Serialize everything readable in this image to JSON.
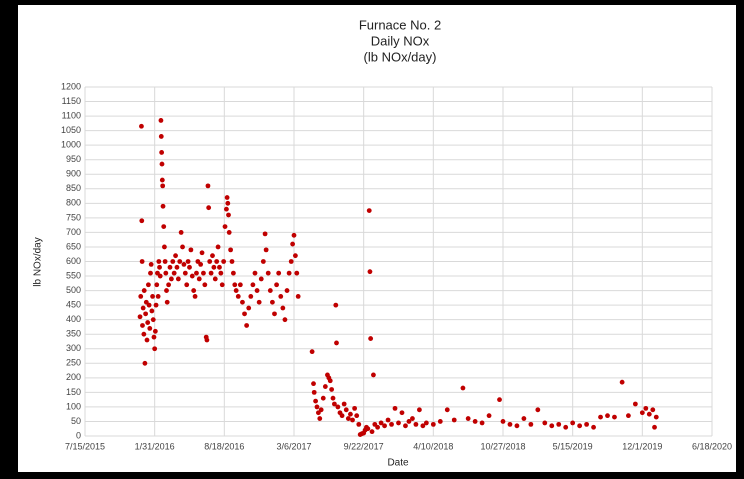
{
  "chart_data": {
    "type": "scatter",
    "title": [
      "Furnace No. 2",
      "Daily NOx",
      "(lb NOx/day)"
    ],
    "x_label": "Date",
    "y_label": "lb NOx/day",
    "xlim": [
      42200,
      44000
    ],
    "xticks": [
      {
        "value": 42200,
        "label": "7/15/2015"
      },
      {
        "value": 42400,
        "label": "1/31/2016"
      },
      {
        "value": 42600,
        "label": "8/18/2016"
      },
      {
        "value": 42800,
        "label": "3/6/2017"
      },
      {
        "value": 43000,
        "label": "9/22/2017"
      },
      {
        "value": 43200,
        "label": "4/10/2018"
      },
      {
        "value": 43400,
        "label": "10/27/2018"
      },
      {
        "value": 43600,
        "label": "5/15/2019"
      },
      {
        "value": 43800,
        "label": "12/1/2019"
      },
      {
        "value": 44000,
        "label": "6/18/2020"
      }
    ],
    "ylim": [
      0,
      1200
    ],
    "yticks": [
      0,
      50,
      100,
      150,
      200,
      250,
      300,
      350,
      400,
      450,
      500,
      550,
      600,
      650,
      700,
      750,
      800,
      850,
      900,
      950,
      1000,
      1050,
      1100,
      1150,
      1200
    ],
    "grid": true,
    "series": [
      {
        "name": "Daily NOx",
        "color": "#c00000",
        "x": [
          42358,
          42360,
          42362,
          42363,
          42364,
          42365,
          42367,
          42369,
          42370,
          42372,
          42374,
          42376,
          42378,
          42380,
          42382,
          42384,
          42386,
          42388,
          42390,
          42392,
          42394,
          42396,
          42398,
          42400,
          42402,
          42404,
          42406,
          42408,
          42410,
          42412,
          42414,
          42416,
          42418,
          42419,
          42420,
          42421,
          42422,
          42423,
          42424,
          42426,
          42428,
          42430,
          42432,
          42434,
          42436,
          42440,
          42444,
          42448,
          42452,
          42456,
          42460,
          42464,
          42468,
          42472,
          42476,
          42480,
          42484,
          42488,
          42492,
          42496,
          42500,
          42504,
          42508,
          42512,
          42516,
          42520,
          42524,
          42528,
          42532,
          42536,
          42540,
          42544,
          42548,
          42550,
          42553,
          42555,
          42558,
          42562,
          42566,
          42570,
          42574,
          42578,
          42582,
          42586,
          42590,
          42594,
          42598,
          42602,
          42606,
          42608,
          42610,
          42612,
          42614,
          42618,
          42622,
          42626,
          42630,
          42634,
          42640,
          42646,
          42652,
          42658,
          42664,
          42670,
          42676,
          42682,
          42688,
          42694,
          42700,
          42706,
          42712,
          42717,
          42720,
          42726,
          42732,
          42738,
          42744,
          42750,
          42756,
          42762,
          42768,
          42774,
          42780,
          42786,
          42792,
          42796,
          42800,
          42804,
          42808,
          42812,
          42852,
          42856,
          42858,
          42862,
          42866,
          42870,
          42874,
          42878,
          42884,
          42890,
          42896,
          42900,
          42904,
          42908,
          42912,
          42916,
          42920,
          42922,
          42926,
          42932,
          42938,
          42944,
          42950,
          42956,
          42962,
          42968,
          42974,
          42980,
          42986,
          42990,
          42995,
          43000,
          43004,
          43008,
          43012,
          43016,
          43018,
          43020,
          43024,
          43028,
          43032,
          43040,
          43050,
          43060,
          43070,
          43080,
          43090,
          43100,
          43110,
          43120,
          43130,
          43140,
          43150,
          43160,
          43170,
          43180,
          43200,
          43220,
          43240,
          43260,
          43285,
          43300,
          43320,
          43340,
          43360,
          43390,
          43400,
          43420,
          43440,
          43460,
          43480,
          43500,
          43520,
          43540,
          43560,
          43580,
          43600,
          43620,
          43640,
          43660,
          43680,
          43700,
          43720,
          43742,
          43760,
          43780,
          43800,
          43810,
          43820,
          43830,
          43835,
          43840
        ],
        "values": [
          410,
          480,
          1065,
          740,
          600,
          380,
          440,
          350,
          500,
          250,
          420,
          460,
          330,
          390,
          520,
          450,
          370,
          560,
          590,
          430,
          480,
          400,
          340,
          300,
          360,
          450,
          520,
          560,
          480,
          600,
          580,
          550,
          1085,
          1030,
          975,
          935,
          880,
          860,
          790,
          720,
          650,
          600,
          560,
          500,
          460,
          520,
          580,
          540,
          600,
          560,
          620,
          580,
          540,
          600,
          700,
          650,
          590,
          560,
          520,
          600,
          580,
          640,
          550,
          500,
          480,
          560,
          600,
          540,
          590,
          630,
          560,
          520,
          340,
          330,
          860,
          785,
          600,
          560,
          620,
          580,
          540,
          600,
          650,
          580,
          560,
          520,
          600,
          720,
          780,
          820,
          800,
          760,
          700,
          640,
          600,
          560,
          520,
          500,
          480,
          520,
          460,
          420,
          380,
          440,
          480,
          520,
          560,
          500,
          460,
          540,
          600,
          695,
          640,
          560,
          500,
          460,
          420,
          520,
          560,
          480,
          440,
          400,
          500,
          560,
          600,
          660,
          690,
          620,
          560,
          480,
          290,
          180,
          150,
          120,
          100,
          80,
          60,
          90,
          130,
          170,
          210,
          200,
          190,
          160,
          130,
          110,
          450,
          320,
          100,
          80,
          70,
          110,
          90,
          60,
          75,
          55,
          95,
          70,
          40,
          5,
          8,
          10,
          20,
          30,
          25,
          775,
          565,
          335,
          15,
          210,
          40,
          30,
          45,
          35,
          55,
          40,
          95,
          45,
          80,
          35,
          50,
          60,
          40,
          90,
          35,
          45,
          40,
          50,
          90,
          55,
          165,
          60,
          50,
          45,
          70,
          125,
          50,
          40,
          35,
          60,
          40,
          90,
          45,
          35,
          40,
          30,
          45,
          35,
          40,
          30,
          65,
          70,
          65,
          185,
          70,
          110,
          80,
          95,
          75,
          90,
          30,
          65
        ]
      }
    ]
  }
}
